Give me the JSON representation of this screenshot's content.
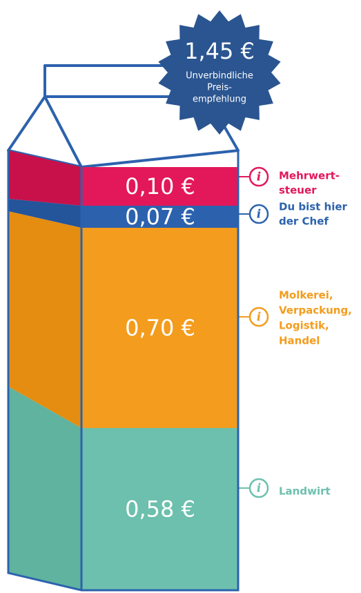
{
  "badge": {
    "price": "1,45 €",
    "text": [
      "Unverbindliche",
      "Preis-",
      "empfehlung"
    ]
  },
  "segments": [
    {
      "price": "0,10 €",
      "label": [
        "Mehrwert-",
        "steuer"
      ]
    },
    {
      "price": "0,07 €",
      "label": [
        "Du bist hier",
        "der Chef"
      ]
    },
    {
      "price": "0,70 €",
      "label": [
        "Molkerei,",
        "Verpackung,",
        "Logistik,",
        "Handel"
      ]
    },
    {
      "price": "0,58 €",
      "label": [
        "Landwirt"
      ]
    }
  ]
}
